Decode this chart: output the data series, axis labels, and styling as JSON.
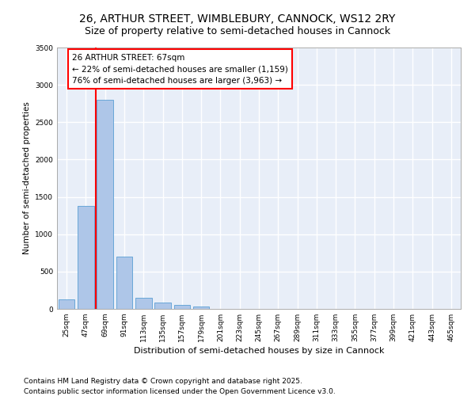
{
  "title": "26, ARTHUR STREET, WIMBLEBURY, CANNOCK, WS12 2RY",
  "subtitle": "Size of property relative to semi-detached houses in Cannock",
  "xlabel": "Distribution of semi-detached houses by size in Cannock",
  "ylabel": "Number of semi-detached properties",
  "categories": [
    "25sqm",
    "47sqm",
    "69sqm",
    "91sqm",
    "113sqm",
    "135sqm",
    "157sqm",
    "179sqm",
    "201sqm",
    "223sqm",
    "245sqm",
    "267sqm",
    "289sqm",
    "311sqm",
    "333sqm",
    "355sqm",
    "377sqm",
    "399sqm",
    "421sqm",
    "443sqm",
    "465sqm"
  ],
  "values": [
    130,
    1380,
    2800,
    700,
    150,
    90,
    55,
    35,
    5,
    2,
    1,
    0,
    0,
    0,
    0,
    0,
    0,
    0,
    0,
    0,
    0
  ],
  "bar_color": "#aec6e8",
  "bar_edge_color": "#5a9fd4",
  "vline_x": 1.5,
  "vline_color": "red",
  "annotation_text": "26 ARTHUR STREET: 67sqm\n← 22% of semi-detached houses are smaller (1,159)\n76% of semi-detached houses are larger (3,963) →",
  "annotation_box_color": "white",
  "annotation_box_edge_color": "red",
  "ylim": [
    0,
    3500
  ],
  "yticks": [
    0,
    500,
    1000,
    1500,
    2000,
    2500,
    3000,
    3500
  ],
  "background_color": "#e8eef8",
  "grid_color": "white",
  "footer_line1": "Contains HM Land Registry data © Crown copyright and database right 2025.",
  "footer_line2": "Contains public sector information licensed under the Open Government Licence v3.0.",
  "title_fontsize": 10,
  "subtitle_fontsize": 9,
  "annotation_fontsize": 7.5,
  "footer_fontsize": 6.5,
  "xlabel_fontsize": 8,
  "ylabel_fontsize": 7.5,
  "tick_fontsize": 6.5
}
